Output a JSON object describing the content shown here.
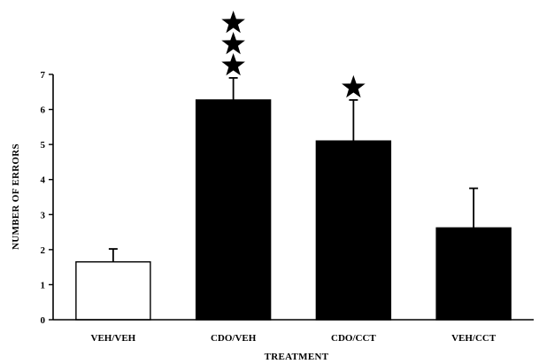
{
  "chart_data": {
    "type": "bar",
    "title": "",
    "xlabel": "TREATMENT",
    "ylabel": "NUMBER OF ERRORS",
    "ylim": [
      0,
      7
    ],
    "yticks": [
      "0",
      "1",
      "2",
      "3",
      "4",
      "5",
      "6",
      "7"
    ],
    "grid": false,
    "categories": [
      "VEH/VEH",
      "CDO/VEH",
      "CDO/CCT",
      "VEH/CCT"
    ],
    "values": [
      1.65,
      6.27,
      5.1,
      2.62
    ],
    "error_upper": [
      2.02,
      6.9,
      6.27,
      3.75
    ],
    "bar_colors": [
      "#ffffff",
      "#000000",
      "#000000",
      "#000000"
    ],
    "significance_stars": [
      0,
      3,
      1,
      0
    ]
  }
}
